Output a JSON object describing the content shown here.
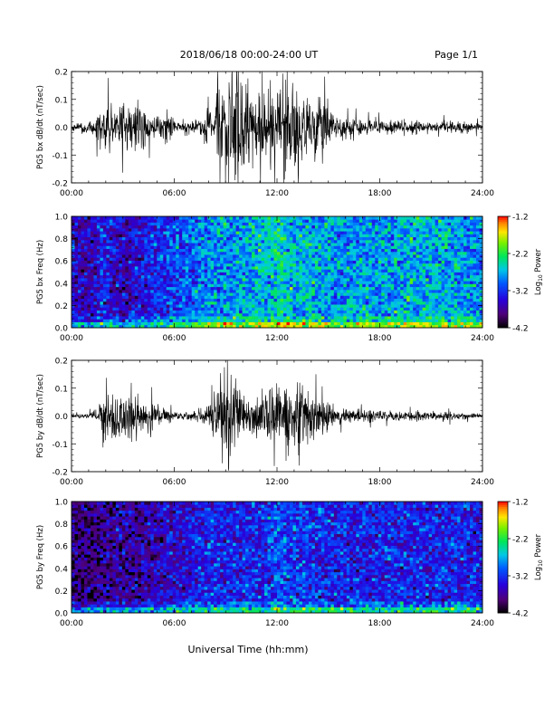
{
  "header": {
    "title": "2018/06/18  00:00-24:00 UT",
    "page": "Page 1/1"
  },
  "xaxis": {
    "ticks": [
      "00:00",
      "06:00",
      "12:00",
      "18:00",
      "24:00"
    ],
    "label": "Universal Time (hh:mm)"
  },
  "colorbar": {
    "label_prefix": "Log",
    "label_sub": "10",
    "label_suffix": " Power",
    "ticks": [
      "-1.2",
      "-2.2",
      "-3.2",
      "-4.2"
    ]
  },
  "chart_data": [
    {
      "type": "line",
      "ylabel": "PG5 bx dB/dt (nT/sec)",
      "yticks": [
        "0.2",
        "0.1",
        "0.0",
        "-0.1",
        "-0.2"
      ],
      "ylim": [
        -0.2,
        0.2
      ],
      "xlim": [
        0,
        24
      ],
      "envelope": {
        "hours": [
          0,
          1,
          1.5,
          2,
          2.5,
          3,
          3.5,
          4,
          4.5,
          5,
          5.5,
          6,
          6.5,
          7,
          7.5,
          8,
          8.5,
          9,
          9.5,
          10,
          10.5,
          11,
          11.5,
          12,
          12.5,
          13,
          13.5,
          14,
          14.5,
          15,
          15.5,
          16,
          17,
          18,
          19,
          20,
          21,
          22,
          23,
          24
        ],
        "amplitude": [
          0.015,
          0.02,
          0.05,
          0.1,
          0.06,
          0.09,
          0.08,
          0.1,
          0.06,
          0.04,
          0.05,
          0.025,
          0.02,
          0.025,
          0.04,
          0.1,
          0.15,
          0.18,
          0.2,
          0.2,
          0.15,
          0.12,
          0.15,
          0.14,
          0.16,
          0.18,
          0.15,
          0.12,
          0.14,
          0.08,
          0.05,
          0.04,
          0.03,
          0.03,
          0.025,
          0.03,
          0.02,
          0.025,
          0.02,
          0.015
        ]
      }
    },
    {
      "type": "heatmap",
      "ylabel": "PG5 bx Freq (Hz)",
      "yticks": [
        "1.0",
        "0.8",
        "0.6",
        "0.4",
        "0.2",
        "0.0"
      ],
      "ylim": [
        0,
        1
      ],
      "xlim": [
        0,
        24
      ],
      "zlim": [
        -4.2,
        -1.2
      ],
      "profile": {
        "hours": [
          0,
          1,
          2,
          3,
          4,
          5,
          6,
          7,
          8,
          9,
          10,
          11,
          12,
          13,
          14,
          15,
          16,
          17,
          18,
          19,
          20,
          21,
          22,
          23,
          24
        ],
        "log_power": [
          -3.4,
          -3.6,
          -3.3,
          -3.6,
          -3.4,
          -3.3,
          -3.1,
          -3.0,
          -2.9,
          -2.8,
          -2.8,
          -2.7,
          -2.5,
          -2.7,
          -2.7,
          -2.8,
          -2.8,
          -2.8,
          -2.8,
          -2.8,
          -2.7,
          -2.7,
          -2.7,
          -2.8,
          -2.9
        ]
      }
    },
    {
      "type": "line",
      "ylabel": "PG5 by dB/dt (nT/sec)",
      "yticks": [
        "0.2",
        "0.1",
        "0.0",
        "-0.1",
        "-0.2"
      ],
      "ylim": [
        -0.2,
        0.2
      ],
      "xlim": [
        0,
        24
      ],
      "envelope": {
        "hours": [
          0,
          1,
          1.5,
          2,
          2.5,
          3,
          3.5,
          4,
          4.5,
          5,
          5.5,
          6,
          6.5,
          7,
          7.5,
          8,
          8.5,
          9,
          9.5,
          10,
          10.5,
          11,
          11.5,
          12,
          12.5,
          13,
          13.5,
          14,
          14.5,
          15,
          15.5,
          16,
          17,
          18,
          19,
          20,
          21,
          22,
          23,
          24
        ],
        "amplitude": [
          0.008,
          0.01,
          0.03,
          0.07,
          0.09,
          0.08,
          0.1,
          0.06,
          0.05,
          0.05,
          0.03,
          0.015,
          0.015,
          0.02,
          0.025,
          0.05,
          0.1,
          0.2,
          0.18,
          0.06,
          0.07,
          0.08,
          0.12,
          0.12,
          0.1,
          0.12,
          0.15,
          0.1,
          0.07,
          0.07,
          0.04,
          0.03,
          0.025,
          0.02,
          0.018,
          0.02,
          0.015,
          0.015,
          0.012,
          0.01
        ]
      }
    },
    {
      "type": "heatmap",
      "ylabel": "PG5 by Freq (Hz)",
      "yticks": [
        "1.0",
        "0.8",
        "0.6",
        "0.4",
        "0.2",
        "0.0"
      ],
      "ylim": [
        0,
        1
      ],
      "xlim": [
        0,
        24
      ],
      "zlim": [
        -4.2,
        -1.2
      ],
      "profile": {
        "hours": [
          0,
          1,
          2,
          3,
          4,
          5,
          6,
          7,
          8,
          9,
          10,
          11,
          12,
          13,
          14,
          15,
          16,
          17,
          18,
          19,
          20,
          21,
          22,
          23,
          24
        ],
        "log_power": [
          -3.8,
          -3.9,
          -3.7,
          -3.7,
          -3.7,
          -3.6,
          -3.5,
          -3.4,
          -3.3,
          -3.3,
          -3.3,
          -3.3,
          -3.1,
          -3.2,
          -3.2,
          -3.3,
          -3.3,
          -3.3,
          -3.3,
          -3.3,
          -3.3,
          -3.3,
          -3.3,
          -3.3,
          -3.4
        ]
      }
    }
  ]
}
